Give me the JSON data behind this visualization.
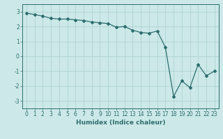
{
  "x": [
    0,
    1,
    2,
    3,
    4,
    5,
    6,
    7,
    8,
    9,
    10,
    11,
    12,
    13,
    14,
    15,
    16,
    17,
    18,
    19,
    20,
    21,
    22,
    23
  ],
  "y": [
    2.9,
    2.8,
    2.7,
    2.55,
    2.5,
    2.5,
    2.45,
    2.4,
    2.3,
    2.25,
    2.2,
    1.95,
    2.0,
    1.75,
    1.6,
    1.55,
    1.7,
    0.6,
    -2.7,
    -1.65,
    -2.1,
    -0.55,
    -1.3,
    -1.0
  ],
  "line_color": "#2d6e6e",
  "marker": "D",
  "marker_size": 2.0,
  "bg_color": "#cce8e8",
  "grid_color": "#aacfcf",
  "xlabel": "Humidex (Indice chaleur)",
  "xlim": [
    -0.5,
    23.5
  ],
  "ylim": [
    -3.5,
    3.5
  ],
  "yticks": [
    -3,
    -2,
    -1,
    0,
    1,
    2,
    3
  ],
  "xticks": [
    0,
    1,
    2,
    3,
    4,
    5,
    6,
    7,
    8,
    9,
    10,
    11,
    12,
    13,
    14,
    15,
    16,
    17,
    18,
    19,
    20,
    21,
    22,
    23
  ],
  "tick_fontsize": 5.5,
  "label_fontsize": 6.5
}
